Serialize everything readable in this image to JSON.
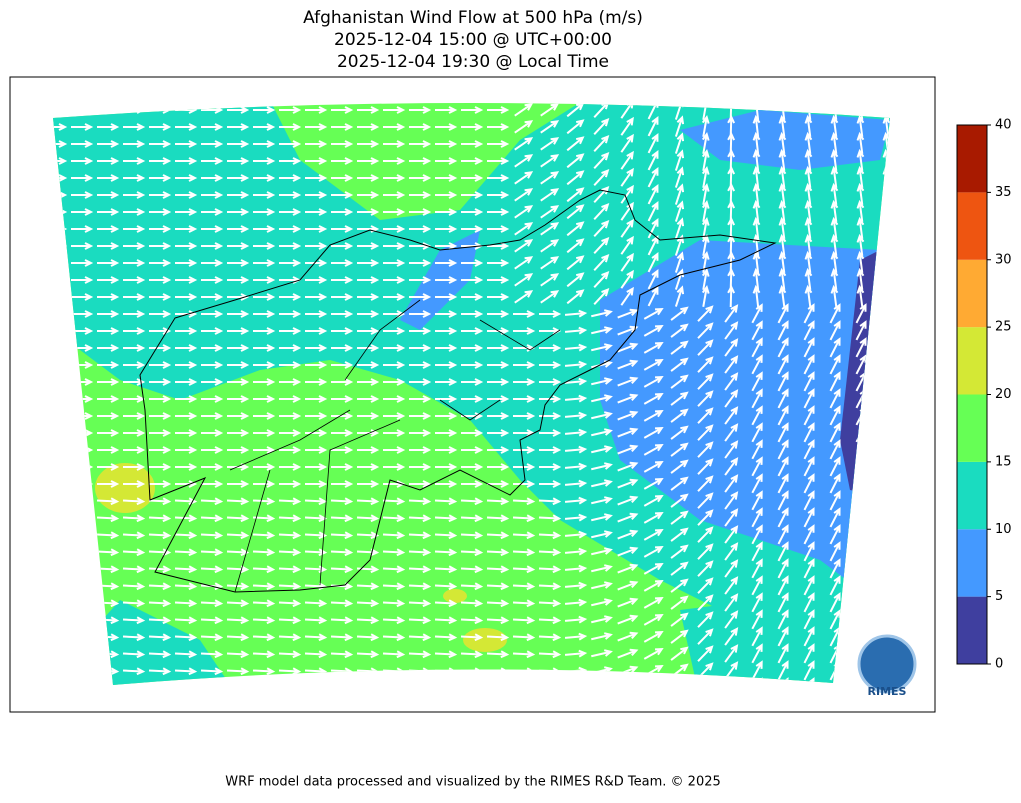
{
  "title": [
    "Afghanistan Wind Flow at 500 hPa (m/s)",
    "2025-12-04 15:00 @ UTC+00:00",
    "2025-12-04 19:30 @ Local Time"
  ],
  "colorbar": {
    "ticks": [
      0,
      5,
      10,
      15,
      20,
      25,
      30,
      35,
      40
    ],
    "colors": [
      "#3f3f9f",
      "#4499ff",
      "#1adcc0",
      "#66ff55",
      "#d4e835",
      "#ffaa33",
      "#ee5511",
      "#a81a00"
    ]
  },
  "logo": "RIMES",
  "footer": "WRF model data processed and visualized by the RIMES R&D Team. © 2025"
}
